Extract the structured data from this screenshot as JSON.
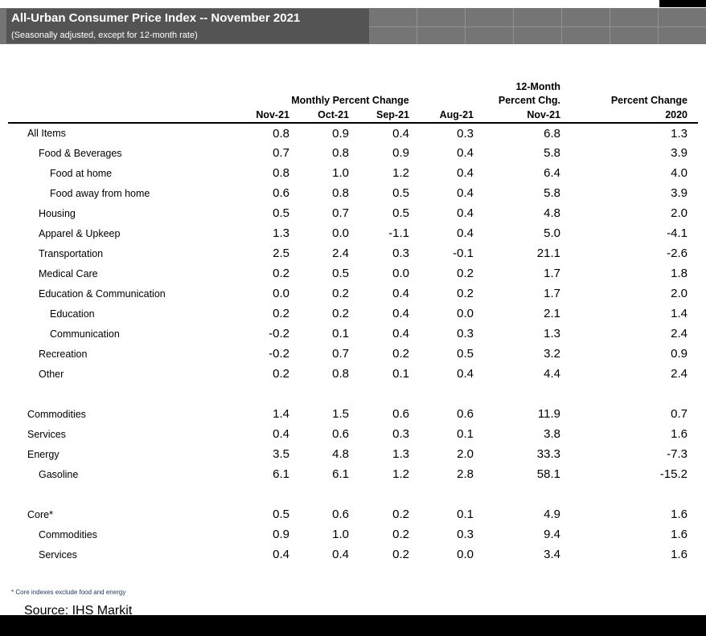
{
  "chart_data": {
    "type": "table",
    "title": "All-Urban Consumer Price Index -- November 2021",
    "subtitle": "(Seasonally adjusted, except for 12-month rate)",
    "group_header": "Monthly Percent Change",
    "col_headers": {
      "months": [
        "Nov-21",
        "Oct-21",
        "Sep-21",
        "Aug-21"
      ],
      "twelve_month": [
        "12-Month",
        "Percent Chg.",
        "Nov-21"
      ],
      "pct_change_2020": [
        "Percent Change",
        "2020"
      ]
    },
    "rows": [
      {
        "label": "All Items",
        "indent": 0,
        "values": [
          "0.8",
          "0.9",
          "0.4",
          "0.3",
          "6.8",
          "1.3"
        ]
      },
      {
        "label": "Food & Beverages",
        "indent": 1,
        "values": [
          "0.7",
          "0.8",
          "0.9",
          "0.4",
          "5.8",
          "3.9"
        ]
      },
      {
        "label": "Food at home",
        "indent": 2,
        "values": [
          "0.8",
          "1.0",
          "1.2",
          "0.4",
          "6.4",
          "4.0"
        ]
      },
      {
        "label": "Food away from home",
        "indent": 2,
        "values": [
          "0.6",
          "0.8",
          "0.5",
          "0.4",
          "5.8",
          "3.9"
        ]
      },
      {
        "label": "Housing",
        "indent": 1,
        "values": [
          "0.5",
          "0.7",
          "0.5",
          "0.4",
          "4.8",
          "2.0"
        ]
      },
      {
        "label": "Apparel & Upkeep",
        "indent": 1,
        "values": [
          "1.3",
          "0.0",
          "-1.1",
          "0.4",
          "5.0",
          "-4.1"
        ]
      },
      {
        "label": "Transportation",
        "indent": 1,
        "values": [
          "2.5",
          "2.4",
          "0.3",
          "-0.1",
          "21.1",
          "-2.6"
        ]
      },
      {
        "label": "Medical Care",
        "indent": 1,
        "values": [
          "0.2",
          "0.5",
          "0.0",
          "0.2",
          "1.7",
          "1.8"
        ]
      },
      {
        "label": "Education & Communication",
        "indent": 1,
        "values": [
          "0.0",
          "0.2",
          "0.4",
          "0.2",
          "1.7",
          "2.0"
        ]
      },
      {
        "label": "Education",
        "indent": 2,
        "values": [
          "0.2",
          "0.2",
          "0.4",
          "0.0",
          "2.1",
          "1.4"
        ]
      },
      {
        "label": "Communication",
        "indent": 2,
        "values": [
          "-0.2",
          "0.1",
          "0.4",
          "0.3",
          "1.3",
          "2.4"
        ]
      },
      {
        "label": "Recreation",
        "indent": 1,
        "values": [
          "-0.2",
          "0.7",
          "0.2",
          "0.5",
          "3.2",
          "0.9"
        ]
      },
      {
        "label": "Other",
        "indent": 1,
        "values": [
          "0.2",
          "0.8",
          "0.1",
          "0.4",
          "4.4",
          "2.4"
        ]
      },
      {
        "spacer": true
      },
      {
        "label": "Commodities",
        "indent": 0,
        "values": [
          "1.4",
          "1.5",
          "0.6",
          "0.6",
          "11.9",
          "0.7"
        ]
      },
      {
        "label": "Services",
        "indent": 0,
        "values": [
          "0.4",
          "0.6",
          "0.3",
          "0.1",
          "3.8",
          "1.6"
        ]
      },
      {
        "label": "Energy",
        "indent": 0,
        "values": [
          "3.5",
          "4.8",
          "1.3",
          "2.0",
          "33.3",
          "-7.3"
        ]
      },
      {
        "label": "Gasoline",
        "indent": 1,
        "values": [
          "6.1",
          "6.1",
          "1.2",
          "2.8",
          "58.1",
          "-15.2"
        ]
      },
      {
        "spacer": true
      },
      {
        "label": "Core*",
        "indent": 0,
        "values": [
          "0.5",
          "0.6",
          "0.2",
          "0.1",
          "4.9",
          "1.6"
        ]
      },
      {
        "label": "Commodities",
        "indent": 1,
        "values": [
          "0.9",
          "1.0",
          "0.2",
          "0.3",
          "9.4",
          "1.6"
        ]
      },
      {
        "label": "Services",
        "indent": 1,
        "values": [
          "0.4",
          "0.4",
          "0.2",
          "0.0",
          "3.4",
          "1.6"
        ]
      }
    ],
    "footnote": "* Core indexes exclude food and energy",
    "source": "Source: IHS Markit"
  },
  "colors": {
    "band_light_gray": "#757575",
    "band_dark_gray": "#545454",
    "footnote_blue": "#1f3864",
    "header_text": "#ffffff",
    "table_text": "#000000"
  }
}
